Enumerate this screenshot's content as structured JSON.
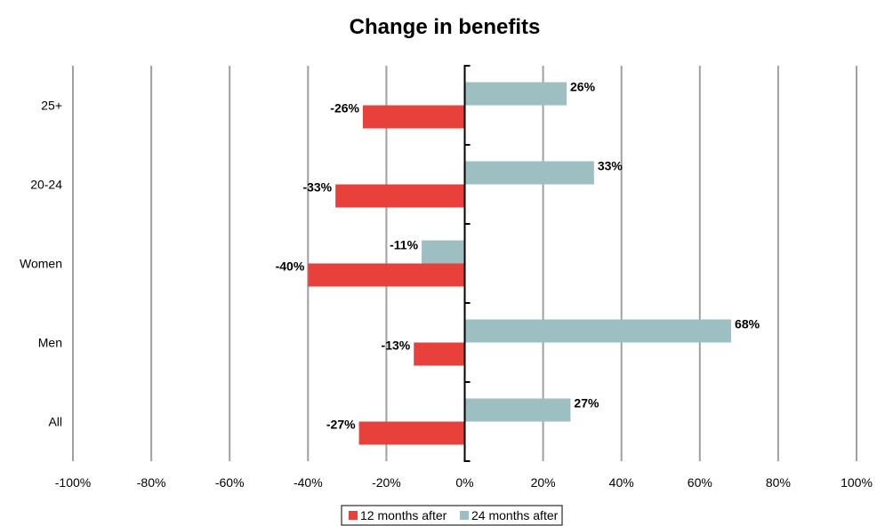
{
  "chart_data": {
    "type": "bar",
    "orientation": "horizontal",
    "title": "Change in benefits",
    "xlabel": "",
    "ylabel": "",
    "categories": [
      "25+",
      "20-24",
      "Women",
      "Men",
      "All"
    ],
    "series": [
      {
        "name": "12 months after",
        "values": [
          -26,
          -33,
          -40,
          -13,
          -27
        ],
        "color": "#e8403a"
      },
      {
        "name": "24 months after",
        "values": [
          26,
          33,
          -11,
          68,
          27
        ],
        "color": "#9dbfc2"
      }
    ],
    "data_labels": {
      "12 months after": [
        "-26%",
        "-33%",
        "-40%",
        "-13%",
        "-27%"
      ],
      "24 months after": [
        "26%",
        "33%",
        "-11%",
        "68%",
        "27%"
      ]
    },
    "xlim": [
      -100,
      100
    ],
    "xticks": [
      -100,
      -80,
      -60,
      -40,
      -20,
      0,
      20,
      40,
      60,
      80,
      100
    ],
    "xtick_labels": [
      "-100%",
      "-80%",
      "-60%",
      "-40%",
      "-20%",
      "0%",
      "20%",
      "40%",
      "60%",
      "80%",
      "100%"
    ],
    "grid": "vertical",
    "gridline_color": "#a0a0a0",
    "legend_placement": "bottom"
  }
}
